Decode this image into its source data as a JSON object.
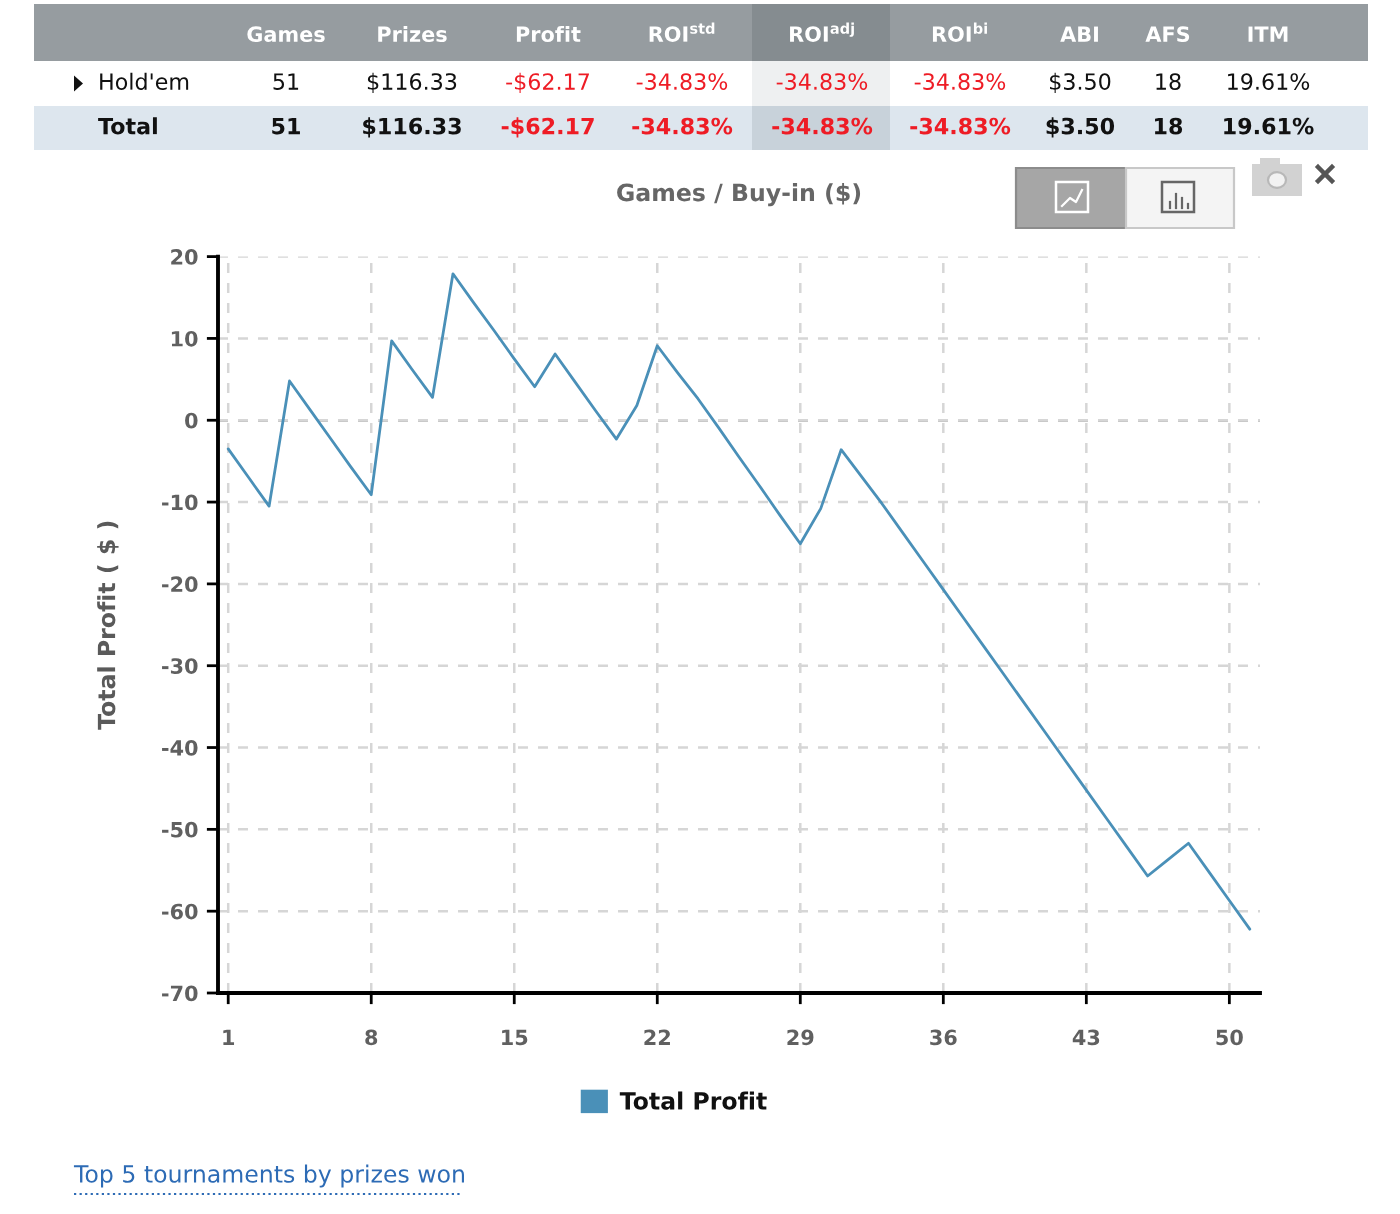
{
  "chart_data": [
    {
      "type": "other",
      "categories": [
        "Games",
        "Prizes",
        "Profit",
        "ROI$^{std}$",
        "ROI$^{adj}$",
        "ROI$^{bi}$",
        "ABI",
        "AFS",
        "ITM"
      ],
      "y_categories": [
        "Hold'em",
        "Total"
      ],
      "cell_labels": [
        [
          "51",
          "$116.33",
          "-$62.17",
          "-34.83%",
          "-34.83%",
          "-34.83%",
          "$3.50",
          "18",
          "19.61%"
        ],
        [
          "51",
          "$116.33",
          "-$62.17",
          "-34.83%",
          "-34.83%",
          "-34.83%",
          "$3.50",
          "18",
          "19.61%"
        ]
      ]
    },
    {
      "type": "line",
      "title": "Games / Buy-in ($)",
      "ylabel": "Total Profit ( $ )",
      "x": [
        1,
        2,
        3,
        4,
        5,
        6,
        7,
        8,
        9,
        10,
        11,
        12,
        13,
        14,
        15,
        16,
        17,
        18,
        19,
        20,
        21,
        22,
        23,
        24,
        25,
        26,
        27,
        28,
        29,
        30,
        31,
        32,
        33,
        34,
        35,
        36,
        37,
        38,
        39,
        40,
        41,
        42,
        43,
        44,
        45,
        46,
        47,
        48,
        49,
        50,
        51
      ],
      "series": [
        {
          "name": "Total Profit",
          "color": "#4a90b8",
          "values": [
            -3.5,
            -7.0,
            -10.5,
            4.8,
            1.3,
            -2.2,
            -5.7,
            -9.1,
            9.7,
            6.2,
            2.8,
            17.9,
            14.4,
            11.0,
            7.5,
            4.1,
            8.1,
            4.6,
            1.1,
            -2.3,
            1.8,
            9.1,
            5.8,
            2.6,
            -0.9,
            -4.5,
            -8.0,
            -11.6,
            -15.1,
            -10.8,
            -3.6,
            -6.9,
            -10.2,
            -13.7,
            -17.2,
            -20.7,
            -24.2,
            -27.7,
            -31.2,
            -34.7,
            -38.2,
            -41.7,
            -45.2,
            -48.7,
            -52.2,
            -55.7,
            -53.7,
            -51.7,
            -55.2,
            -58.7,
            -62.2
          ]
        }
      ],
      "xlim": [
        0.5,
        51.5
      ],
      "xticks": [
        1,
        8,
        15,
        22,
        29,
        36,
        43,
        50
      ],
      "ylim": [
        -70,
        20
      ],
      "yticks": [
        -70,
        -60,
        -50,
        -40,
        -30,
        -20,
        -10,
        0,
        10,
        20
      ],
      "grid": true,
      "legend": "bottom",
      "ref_lines": [
        {
          "axis": "y",
          "value": 0,
          "color": "#7a7a7a",
          "line_style": "dashed"
        }
      ],
      "annotations": [
        "Top 5 tournaments by prizes won"
      ]
    }
  ]
}
